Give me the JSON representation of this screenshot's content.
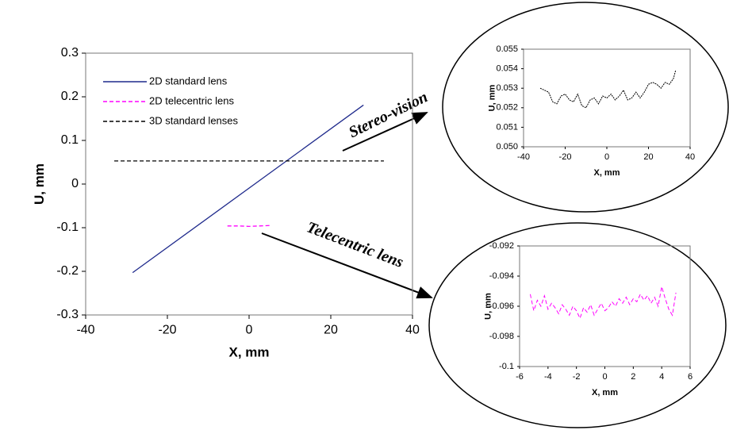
{
  "chart_data": [
    {
      "type": "line",
      "xlabel": "X, mm",
      "ylabel": "U, mm",
      "xlim": [
        -40,
        40
      ],
      "xticks": [
        -40,
        -20,
        0,
        20,
        40
      ],
      "ylim": [
        -0.3,
        0.3
      ],
      "yticks": [
        -0.3,
        -0.2,
        -0.1,
        0,
        0.1,
        0.2,
        0.3
      ],
      "legend": "upper left",
      "annotations": [
        "Stereo-vision",
        "Telecentric lens"
      ],
      "series": [
        {
          "name": "2D standard lens",
          "color": "#1f2a8c",
          "style": "solid",
          "x": [
            -28.5,
            28
          ],
          "values": [
            -0.203,
            0.181
          ]
        },
        {
          "name": "2D telecentric lens",
          "color": "#ff00ff",
          "style": "dashed",
          "x": [
            -5.3,
            -2.5,
            0,
            2.5,
            5
          ],
          "values": [
            -0.096,
            -0.096,
            -0.097,
            -0.096,
            -0.095
          ]
        },
        {
          "name": "3D standard lenses",
          "color": "#000000",
          "style": "dashed",
          "x": [
            -33,
            33
          ],
          "values": [
            0.053,
            0.053
          ]
        }
      ]
    },
    {
      "type": "line",
      "xlabel": "X, mm",
      "ylabel": "U, mm",
      "xlim": [
        -40,
        40
      ],
      "xticks": [
        -40,
        -20,
        0,
        20,
        40
      ],
      "ylim": [
        0.05,
        0.055
      ],
      "yticks": [
        {
          "value": 0.05,
          "label": "0.050"
        },
        0.051,
        0.052,
        0.053,
        0.054,
        0.055
      ],
      "series": [
        {
          "color": "#000000",
          "style": "dotted",
          "x": [
            -32,
            -30,
            -28,
            -26,
            -24,
            -22,
            -20,
            -18,
            -16,
            -14,
            -12,
            -10,
            -8,
            -6,
            -4,
            -2,
            0,
            2,
            4,
            6,
            8,
            10,
            12,
            14,
            16,
            18,
            20,
            22,
            24,
            26,
            28,
            30,
            32,
            33
          ],
          "values": [
            0.053,
            0.0529,
            0.0528,
            0.0523,
            0.0522,
            0.0526,
            0.0527,
            0.0524,
            0.0523,
            0.0527,
            0.0521,
            0.052,
            0.0524,
            0.0525,
            0.0522,
            0.0526,
            0.0525,
            0.0527,
            0.0524,
            0.0526,
            0.0529,
            0.0524,
            0.0525,
            0.0528,
            0.0525,
            0.0528,
            0.0532,
            0.0533,
            0.0532,
            0.053,
            0.0533,
            0.0532,
            0.0535,
            0.0539
          ]
        }
      ]
    },
    {
      "type": "line",
      "xlabel": "X, mm",
      "ylabel": "U, mm",
      "xlim": [
        -6,
        6
      ],
      "xticks": [
        -6,
        -4,
        -2,
        0,
        2,
        4,
        6
      ],
      "ylim": [
        -0.1,
        -0.092
      ],
      "yticks": [
        -0.1,
        -0.098,
        -0.096,
        -0.094,
        -0.092
      ],
      "series": [
        {
          "color": "#ff00ff",
          "style": "dashed",
          "x": [
            -5.25,
            -5,
            -4.75,
            -4.5,
            -4.25,
            -4,
            -3.75,
            -3.5,
            -3.25,
            -3,
            -2.75,
            -2.5,
            -2.25,
            -2,
            -1.75,
            -1.5,
            -1.25,
            -1,
            -0.75,
            -0.5,
            -0.25,
            0,
            0.25,
            0.5,
            0.75,
            1,
            1.25,
            1.5,
            1.75,
            2,
            2.25,
            2.5,
            2.75,
            3,
            3.25,
            3.5,
            3.75,
            4,
            4.25,
            4.5,
            4.75,
            5
          ],
          "values": [
            -0.0952,
            -0.0963,
            -0.0956,
            -0.096,
            -0.0953,
            -0.0962,
            -0.0958,
            -0.0961,
            -0.0965,
            -0.0959,
            -0.0962,
            -0.0966,
            -0.096,
            -0.0963,
            -0.0968,
            -0.0961,
            -0.0964,
            -0.0959,
            -0.0966,
            -0.0962,
            -0.0958,
            -0.0963,
            -0.0961,
            -0.0957,
            -0.096,
            -0.0955,
            -0.0958,
            -0.0954,
            -0.0959,
            -0.0955,
            -0.0957,
            -0.0952,
            -0.0956,
            -0.0953,
            -0.0958,
            -0.0954,
            -0.096,
            -0.0947,
            -0.0955,
            -0.0962,
            -0.0966,
            -0.0951
          ]
        }
      ]
    }
  ]
}
